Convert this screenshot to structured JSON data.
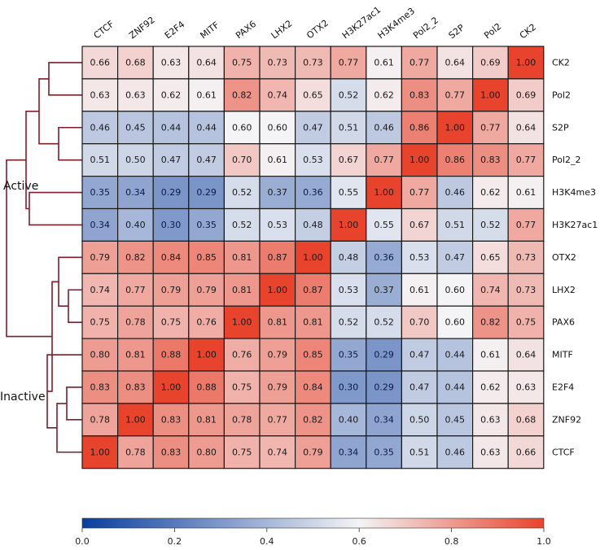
{
  "chart_data": {
    "type": "heatmap",
    "columns": [
      "CTCF",
      "ZNF92",
      "E2F4",
      "MITF",
      "PAX6",
      "LHX2",
      "OTX2",
      "H3K27ac1",
      "H3K4me3",
      "Pol2_2",
      "S2P",
      "Pol2",
      "CK2"
    ],
    "rows": [
      "CK2",
      "Pol2",
      "S2P",
      "Pol2_2",
      "H3K4me3",
      "H3K27ac1",
      "OTX2",
      "LHX2",
      "PAX6",
      "MITF",
      "E2F4",
      "ZNF92",
      "CTCF"
    ],
    "values": [
      [
        0.66,
        0.68,
        0.63,
        0.64,
        0.75,
        0.73,
        0.73,
        0.77,
        0.61,
        0.77,
        0.64,
        0.69,
        1.0
      ],
      [
        0.63,
        0.63,
        0.62,
        0.61,
        0.82,
        0.74,
        0.65,
        0.52,
        0.62,
        0.83,
        0.77,
        1.0,
        0.69
      ],
      [
        0.46,
        0.45,
        0.44,
        0.44,
        0.6,
        0.6,
        0.47,
        0.51,
        0.46,
        0.86,
        1.0,
        0.77,
        0.64
      ],
      [
        0.51,
        0.5,
        0.47,
        0.47,
        0.7,
        0.61,
        0.53,
        0.67,
        0.77,
        1.0,
        0.86,
        0.83,
        0.77
      ],
      [
        0.35,
        0.34,
        0.29,
        0.29,
        0.52,
        0.37,
        0.36,
        0.55,
        1.0,
        0.77,
        0.46,
        0.62,
        0.61
      ],
      [
        0.34,
        0.4,
        0.3,
        0.35,
        0.52,
        0.53,
        0.48,
        1.0,
        0.55,
        0.67,
        0.51,
        0.52,
        0.77
      ],
      [
        0.79,
        0.82,
        0.84,
        0.85,
        0.81,
        0.87,
        1.0,
        0.48,
        0.36,
        0.53,
        0.47,
        0.65,
        0.73
      ],
      [
        0.74,
        0.77,
        0.79,
        0.79,
        0.81,
        1.0,
        0.87,
        0.53,
        0.37,
        0.61,
        0.6,
        0.74,
        0.73
      ],
      [
        0.75,
        0.78,
        0.75,
        0.76,
        1.0,
        0.81,
        0.81,
        0.52,
        0.52,
        0.7,
        0.6,
        0.82,
        0.75
      ],
      [
        0.8,
        0.81,
        0.88,
        1.0,
        0.76,
        0.79,
        0.85,
        0.35,
        0.29,
        0.47,
        0.44,
        0.61,
        0.64
      ],
      [
        0.83,
        0.83,
        1.0,
        0.88,
        0.75,
        0.79,
        0.84,
        0.3,
        0.29,
        0.47,
        0.44,
        0.62,
        0.63
      ],
      [
        0.78,
        1.0,
        0.83,
        0.81,
        0.78,
        0.77,
        0.82,
        0.4,
        0.34,
        0.5,
        0.45,
        0.63,
        0.68
      ],
      [
        1.0,
        0.78,
        0.83,
        0.8,
        0.75,
        0.74,
        0.79,
        0.34,
        0.35,
        0.51,
        0.46,
        0.63,
        0.66
      ]
    ],
    "value_range": [
      0.0,
      1.0
    ],
    "colormap": [
      "#0a3d9e",
      "#f4f4f6",
      "#e8432c"
    ],
    "colorbar_ticks": [
      "0.0",
      "0.2",
      "0.4",
      "0.6",
      "0.8",
      "1.0"
    ],
    "colorbar_position": "bottom",
    "dendrogram_side": "left",
    "dendrogram_color": "#7a1f2b",
    "group_labels": [
      "Active",
      "Inactive"
    ]
  }
}
